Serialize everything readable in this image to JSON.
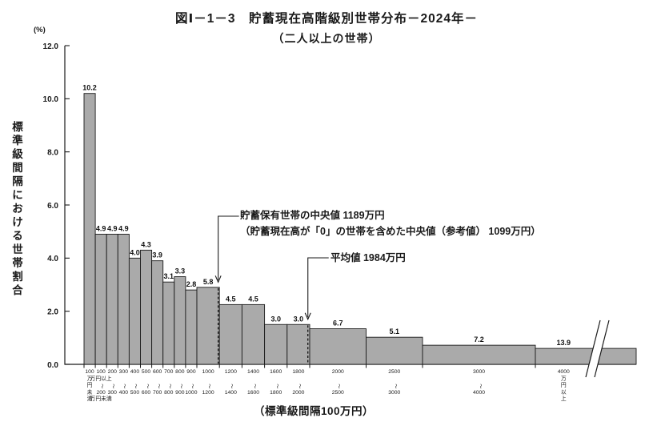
{
  "chart_data": {
    "type": "bar",
    "title": "図Ⅰ－1－3　貯蓄現在高階級別世帯分布－2024年－",
    "subtitle": "（二人以上の世帯）",
    "y_unit": "(%)",
    "ylabel": "標準級間隔における世帯割合",
    "xlabel": "（標準級間隔100万円）",
    "ylim": [
      0,
      12
    ],
    "yticks": [
      12,
      10,
      8,
      6,
      4,
      2,
      0
    ],
    "grid": false,
    "bar_color": "#aaaaaa",
    "bar_edge_color": "#1a1a1a",
    "bars": [
      {
        "lower": 0,
        "upper": 100,
        "value": 10.2,
        "label_lines": [
          "100",
          "万",
          "円",
          "未",
          "満"
        ]
      },
      {
        "lower": 100,
        "upper": 200,
        "value": 4.9,
        "label_lines": [
          "100",
          "万円以上",
          "〜",
          "200",
          "万円未満"
        ]
      },
      {
        "lower": 200,
        "upper": 300,
        "value": 4.9,
        "label_lines": [
          "200",
          "",
          "〜",
          "300"
        ]
      },
      {
        "lower": 300,
        "upper": 400,
        "value": 4.9,
        "label_lines": [
          "300",
          "",
          "〜",
          "400"
        ]
      },
      {
        "lower": 400,
        "upper": 500,
        "value": 4.0,
        "label_lines": [
          "400",
          "",
          "〜",
          "500"
        ]
      },
      {
        "lower": 500,
        "upper": 600,
        "value": 4.3,
        "label_lines": [
          "500",
          "",
          "〜",
          "600"
        ]
      },
      {
        "lower": 600,
        "upper": 700,
        "value": 3.9,
        "label_lines": [
          "600",
          "",
          "〜",
          "700"
        ]
      },
      {
        "lower": 700,
        "upper": 800,
        "value": 3.1,
        "label_lines": [
          "700",
          "",
          "〜",
          "800"
        ]
      },
      {
        "lower": 800,
        "upper": 900,
        "value": 3.3,
        "label_lines": [
          "800",
          "",
          "〜",
          "900"
        ]
      },
      {
        "lower": 900,
        "upper": 1000,
        "value": 2.8,
        "label_lines": [
          "900",
          "",
          "〜",
          "1000"
        ]
      },
      {
        "lower": 1000,
        "upper": 1200,
        "value": 5.8,
        "label_lines": [
          "1000",
          "",
          "〜",
          "1200"
        ]
      },
      {
        "lower": 1200,
        "upper": 1400,
        "value": 4.5,
        "label_lines": [
          "1200",
          "",
          "〜",
          "1400"
        ]
      },
      {
        "lower": 1400,
        "upper": 1600,
        "value": 4.5,
        "label_lines": [
          "1400",
          "",
          "〜",
          "1600"
        ]
      },
      {
        "lower": 1600,
        "upper": 1800,
        "value": 3.0,
        "label_lines": [
          "1600",
          "",
          "〜",
          "1800"
        ]
      },
      {
        "lower": 1800,
        "upper": 2000,
        "value": 3.0,
        "label_lines": [
          "1800",
          "",
          "〜",
          "2000"
        ]
      },
      {
        "lower": 2000,
        "upper": 2500,
        "value": 6.7,
        "label_lines": [
          "2000",
          "",
          "〜",
          "2500"
        ]
      },
      {
        "lower": 2500,
        "upper": 3000,
        "value": 5.1,
        "label_lines": [
          "2500",
          "",
          "〜",
          "3000"
        ]
      },
      {
        "lower": 3000,
        "upper": 4000,
        "value": 7.2,
        "label_lines": [
          "3000",
          "",
          "〜",
          "4000"
        ]
      },
      {
        "lower": 4000,
        "upper": null,
        "value": 13.9,
        "plot_height": 0.6,
        "open_ended": true,
        "label_lines": [
          "4000",
          "万",
          "円",
          "以",
          "上"
        ]
      }
    ],
    "axis_break": {
      "start_value": 4500
    },
    "annotations": [
      {
        "id": "median",
        "x_value": 1189,
        "lines": [
          "貯蓄保有世帯の中央値 1189万円",
          "（貯蓄現在高が「0」の世帯を含めた中央値（参考値） 1099万円）"
        ]
      },
      {
        "id": "mean",
        "x_value": 1984,
        "lines": [
          "平均値 1984万円"
        ]
      }
    ]
  }
}
